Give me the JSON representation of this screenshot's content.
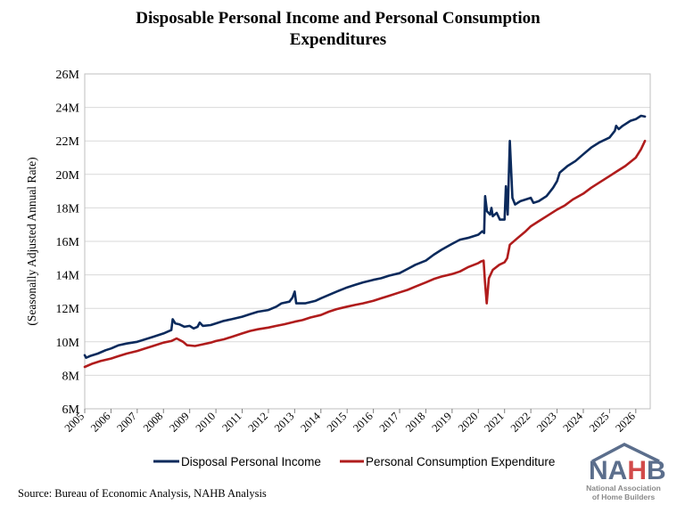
{
  "chart_data": {
    "type": "line",
    "title": "Disposable Personal Income and Personal Consumption Expenditures",
    "title_lines": [
      "Disposable Personal Income and Personal Consumption",
      "Expenditures"
    ],
    "xlabel": "",
    "ylabel": "(Seasonally Adjusted Annual Rate)",
    "ylim": [
      6,
      26
    ],
    "xlim": [
      2005,
      2026.55
    ],
    "y_ticks": [
      6,
      8,
      10,
      12,
      14,
      16,
      18,
      20,
      22,
      24,
      26
    ],
    "y_tick_labels": [
      "6M",
      "8M",
      "10M",
      "12M",
      "14M",
      "16M",
      "18M",
      "20M",
      "22M",
      "24M",
      "26M"
    ],
    "x_ticks": [
      2005,
      2006,
      2007,
      2008,
      2009,
      2010,
      2011,
      2012,
      2013,
      2014,
      2015,
      2016,
      2017,
      2018,
      2019,
      2020,
      2021,
      2022,
      2023,
      2024,
      2025,
      2026
    ],
    "x_tick_labels": [
      "2005",
      "2006",
      "2007",
      "2008",
      "2009",
      "2010",
      "2011",
      "2012",
      "2013",
      "2014",
      "2015",
      "2016",
      "2017",
      "2018",
      "2019",
      "2020",
      "2021",
      "2022",
      "2023",
      "2024",
      "2025",
      "2026"
    ],
    "grid": "horizontal",
    "legend_position": "bottom",
    "series": [
      {
        "name": "Disposal Personal Income",
        "color": "#0b2a5c",
        "points": [
          [
            2005.0,
            9.2
          ],
          [
            2005.05,
            9.05
          ],
          [
            2005.2,
            9.15
          ],
          [
            2005.5,
            9.3
          ],
          [
            2005.8,
            9.5
          ],
          [
            2006.0,
            9.6
          ],
          [
            2006.3,
            9.8
          ],
          [
            2006.6,
            9.9
          ],
          [
            2007.0,
            10.0
          ],
          [
            2007.3,
            10.15
          ],
          [
            2007.6,
            10.3
          ],
          [
            2008.0,
            10.5
          ],
          [
            2008.3,
            10.7
          ],
          [
            2008.35,
            11.35
          ],
          [
            2008.45,
            11.1
          ],
          [
            2008.6,
            11.05
          ],
          [
            2008.8,
            10.9
          ],
          [
            2009.0,
            10.95
          ],
          [
            2009.15,
            10.8
          ],
          [
            2009.3,
            10.9
          ],
          [
            2009.38,
            11.15
          ],
          [
            2009.5,
            10.95
          ],
          [
            2009.8,
            11.0
          ],
          [
            2010.0,
            11.1
          ],
          [
            2010.3,
            11.25
          ],
          [
            2010.6,
            11.35
          ],
          [
            2011.0,
            11.5
          ],
          [
            2011.3,
            11.65
          ],
          [
            2011.6,
            11.8
          ],
          [
            2012.0,
            11.9
          ],
          [
            2012.3,
            12.1
          ],
          [
            2012.5,
            12.3
          ],
          [
            2012.8,
            12.4
          ],
          [
            2012.92,
            12.65
          ],
          [
            2013.0,
            13.0
          ],
          [
            2013.06,
            12.3
          ],
          [
            2013.4,
            12.3
          ],
          [
            2013.8,
            12.45
          ],
          [
            2014.0,
            12.6
          ],
          [
            2014.3,
            12.8
          ],
          [
            2014.6,
            13.0
          ],
          [
            2015.0,
            13.25
          ],
          [
            2015.3,
            13.4
          ],
          [
            2015.6,
            13.55
          ],
          [
            2016.0,
            13.7
          ],
          [
            2016.3,
            13.8
          ],
          [
            2016.6,
            13.95
          ],
          [
            2017.0,
            14.1
          ],
          [
            2017.3,
            14.35
          ],
          [
            2017.6,
            14.6
          ],
          [
            2018.0,
            14.85
          ],
          [
            2018.3,
            15.2
          ],
          [
            2018.6,
            15.5
          ],
          [
            2019.0,
            15.85
          ],
          [
            2019.3,
            16.1
          ],
          [
            2019.6,
            16.2
          ],
          [
            2020.0,
            16.4
          ],
          [
            2020.15,
            16.6
          ],
          [
            2020.22,
            16.5
          ],
          [
            2020.26,
            18.7
          ],
          [
            2020.33,
            17.8
          ],
          [
            2020.45,
            17.6
          ],
          [
            2020.5,
            18.0
          ],
          [
            2020.55,
            17.5
          ],
          [
            2020.7,
            17.7
          ],
          [
            2020.82,
            17.3
          ],
          [
            2021.0,
            17.3
          ],
          [
            2021.05,
            19.3
          ],
          [
            2021.12,
            17.6
          ],
          [
            2021.2,
            22.0
          ],
          [
            2021.3,
            18.6
          ],
          [
            2021.4,
            18.2
          ],
          [
            2021.6,
            18.4
          ],
          [
            2021.8,
            18.5
          ],
          [
            2022.0,
            18.6
          ],
          [
            2022.1,
            18.3
          ],
          [
            2022.3,
            18.4
          ],
          [
            2022.6,
            18.7
          ],
          [
            2022.85,
            19.2
          ],
          [
            2023.0,
            19.6
          ],
          [
            2023.1,
            20.1
          ],
          [
            2023.4,
            20.5
          ],
          [
            2023.7,
            20.8
          ],
          [
            2024.0,
            21.2
          ],
          [
            2024.3,
            21.6
          ],
          [
            2024.6,
            21.9
          ],
          [
            2025.0,
            22.2
          ],
          [
            2025.2,
            22.6
          ],
          [
            2025.25,
            22.9
          ],
          [
            2025.35,
            22.7
          ],
          [
            2025.5,
            22.9
          ],
          [
            2025.8,
            23.2
          ],
          [
            2026.0,
            23.3
          ],
          [
            2026.2,
            23.5
          ],
          [
            2026.35,
            23.45
          ]
        ]
      },
      {
        "name": "Personal Consumption Expenditure",
        "color": "#b01c1c",
        "points": [
          [
            2005.0,
            8.5
          ],
          [
            2005.3,
            8.7
          ],
          [
            2005.6,
            8.85
          ],
          [
            2006.0,
            9.0
          ],
          [
            2006.3,
            9.15
          ],
          [
            2006.6,
            9.3
          ],
          [
            2007.0,
            9.45
          ],
          [
            2007.3,
            9.6
          ],
          [
            2007.6,
            9.75
          ],
          [
            2008.0,
            9.95
          ],
          [
            2008.3,
            10.05
          ],
          [
            2008.5,
            10.2
          ],
          [
            2008.75,
            10.0
          ],
          [
            2008.9,
            9.8
          ],
          [
            2009.2,
            9.75
          ],
          [
            2009.5,
            9.85
          ],
          [
            2009.8,
            9.95
          ],
          [
            2010.0,
            10.05
          ],
          [
            2010.3,
            10.15
          ],
          [
            2010.6,
            10.3
          ],
          [
            2011.0,
            10.5
          ],
          [
            2011.3,
            10.65
          ],
          [
            2011.6,
            10.75
          ],
          [
            2012.0,
            10.85
          ],
          [
            2012.3,
            10.95
          ],
          [
            2012.6,
            11.05
          ],
          [
            2013.0,
            11.2
          ],
          [
            2013.3,
            11.3
          ],
          [
            2013.6,
            11.45
          ],
          [
            2014.0,
            11.6
          ],
          [
            2014.3,
            11.8
          ],
          [
            2014.6,
            11.95
          ],
          [
            2015.0,
            12.1
          ],
          [
            2015.3,
            12.2
          ],
          [
            2015.6,
            12.3
          ],
          [
            2016.0,
            12.45
          ],
          [
            2016.3,
            12.6
          ],
          [
            2016.6,
            12.75
          ],
          [
            2017.0,
            12.95
          ],
          [
            2017.3,
            13.1
          ],
          [
            2017.6,
            13.3
          ],
          [
            2018.0,
            13.55
          ],
          [
            2018.3,
            13.75
          ],
          [
            2018.6,
            13.9
          ],
          [
            2019.0,
            14.05
          ],
          [
            2019.3,
            14.2
          ],
          [
            2019.6,
            14.45
          ],
          [
            2020.0,
            14.7
          ],
          [
            2020.1,
            14.8
          ],
          [
            2020.2,
            14.85
          ],
          [
            2020.25,
            13.6
          ],
          [
            2020.32,
            12.3
          ],
          [
            2020.4,
            13.8
          ],
          [
            2020.55,
            14.3
          ],
          [
            2020.8,
            14.6
          ],
          [
            2021.0,
            14.75
          ],
          [
            2021.1,
            15.0
          ],
          [
            2021.2,
            15.8
          ],
          [
            2021.5,
            16.2
          ],
          [
            2021.8,
            16.6
          ],
          [
            2022.0,
            16.9
          ],
          [
            2022.3,
            17.2
          ],
          [
            2022.6,
            17.5
          ],
          [
            2023.0,
            17.9
          ],
          [
            2023.3,
            18.15
          ],
          [
            2023.6,
            18.5
          ],
          [
            2024.0,
            18.85
          ],
          [
            2024.3,
            19.2
          ],
          [
            2024.6,
            19.5
          ],
          [
            2025.0,
            19.9
          ],
          [
            2025.3,
            20.2
          ],
          [
            2025.6,
            20.5
          ],
          [
            2026.0,
            21.0
          ],
          [
            2026.2,
            21.5
          ],
          [
            2026.35,
            22.0
          ]
        ]
      }
    ]
  },
  "source_text": "Source: Bureau of Economic Analysis, NAHB Analysis",
  "logo": {
    "letters": [
      "N",
      "A",
      "H",
      "B"
    ],
    "letter_colors": [
      "#5b6e8c",
      "#5b6e8c",
      "#d24a4a",
      "#5b6e8c"
    ],
    "subtitle_lines": [
      "National Association",
      "of Home Builders"
    ]
  }
}
